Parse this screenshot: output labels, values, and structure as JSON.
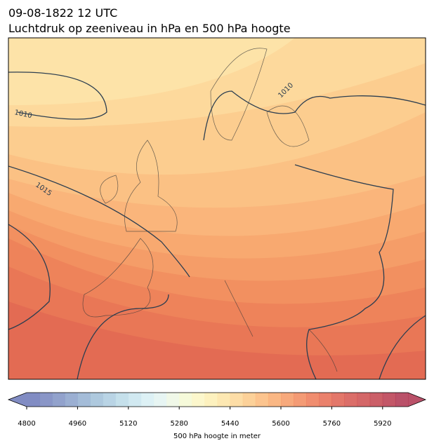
{
  "header": {
    "title": "09-08-1822 12 UTC",
    "subtitle": "Luchtdruk op zeeniveau in hPa en 500 hPa hoogte"
  },
  "map": {
    "contour_labels": [
      "1010",
      "1010",
      "1015"
    ]
  },
  "colorbar": {
    "range": [
      4800,
      6000
    ],
    "ticks": [
      4800,
      4960,
      5120,
      5280,
      5440,
      5600,
      5760,
      5920
    ],
    "label": "500 hPa hoogte in meter",
    "colors": [
      "#6b78b8",
      "#7584bd",
      "#7f92c3",
      "#89a1ca",
      "#94b0d1",
      "#a0bfd8",
      "#adcde0",
      "#bbdae7",
      "#c9e5ee",
      "#d7eef3",
      "#e3f3f1",
      "#edf7e4",
      "#f5f9d3",
      "#fbf6c3",
      "#fdeeb3",
      "#fde4a4",
      "#fdd796",
      "#fcc987",
      "#fbba7a",
      "#f9aa6e",
      "#f69a65",
      "#f2895d",
      "#ed7956",
      "#e66b52",
      "#de5f50",
      "#d5554f",
      "#cc4c4e",
      "#c2434e",
      "#b83a4e",
      "#ae334f"
    ]
  }
}
